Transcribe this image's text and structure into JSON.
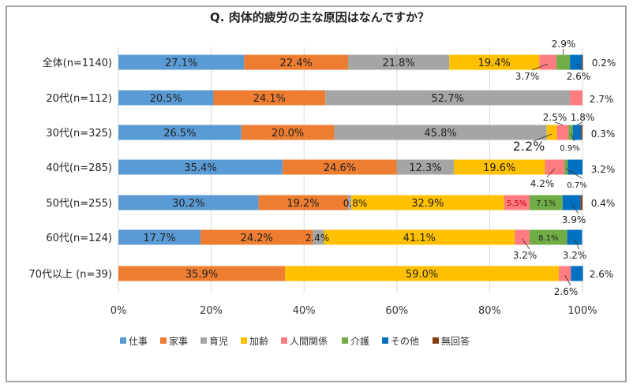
{
  "chart_data": {
    "type": "bar",
    "orientation": "horizontal",
    "stacked": "percent",
    "title": "Q. 肉体的疲労の主な原因はなんですか？",
    "categories": [
      "全体(n=1140)",
      "20代(n=112)",
      "30代(n=325)",
      "40代(n=285)",
      "50代(n=255)",
      "60代(n=124)",
      "70代以上 (n=39)"
    ],
    "series": [
      {
        "name": "仕事",
        "color": "#5B9BD5",
        "values": [
          27.1,
          20.5,
          26.5,
          35.4,
          30.2,
          17.7,
          0
        ]
      },
      {
        "name": "家事",
        "color": "#ED7D31",
        "values": [
          22.4,
          24.1,
          20.0,
          24.6,
          19.2,
          24.2,
          35.9
        ]
      },
      {
        "name": "育児",
        "color": "#A5A5A5",
        "values": [
          21.8,
          52.7,
          45.8,
          12.3,
          0.8,
          2.4,
          0
        ]
      },
      {
        "name": "加齢",
        "color": "#FFC000",
        "values": [
          19.4,
          0,
          2.2,
          19.6,
          32.9,
          41.1,
          59.0
        ]
      },
      {
        "name": "人間関係",
        "color": "#FF7C80",
        "values": [
          3.7,
          2.7,
          2.5,
          4.2,
          5.5,
          3.2,
          2.6
        ]
      },
      {
        "name": "介護",
        "color": "#70AD47",
        "values": [
          2.9,
          0,
          0.9,
          0.7,
          7.1,
          8.1,
          0
        ]
      },
      {
        "name": "その他",
        "color": "#0070C0",
        "values": [
          2.6,
          0,
          1.8,
          3.2,
          3.9,
          3.2,
          2.6
        ]
      },
      {
        "name": "無回答",
        "color": "#843C0C",
        "values": [
          0.2,
          0,
          0.3,
          0,
          0.4,
          0,
          0
        ]
      }
    ],
    "xticks": [
      "0%",
      "20%",
      "40%",
      "60%",
      "80%",
      "100%"
    ],
    "xlim": [
      0,
      100
    ],
    "grid": true,
    "legend": "bottom"
  }
}
